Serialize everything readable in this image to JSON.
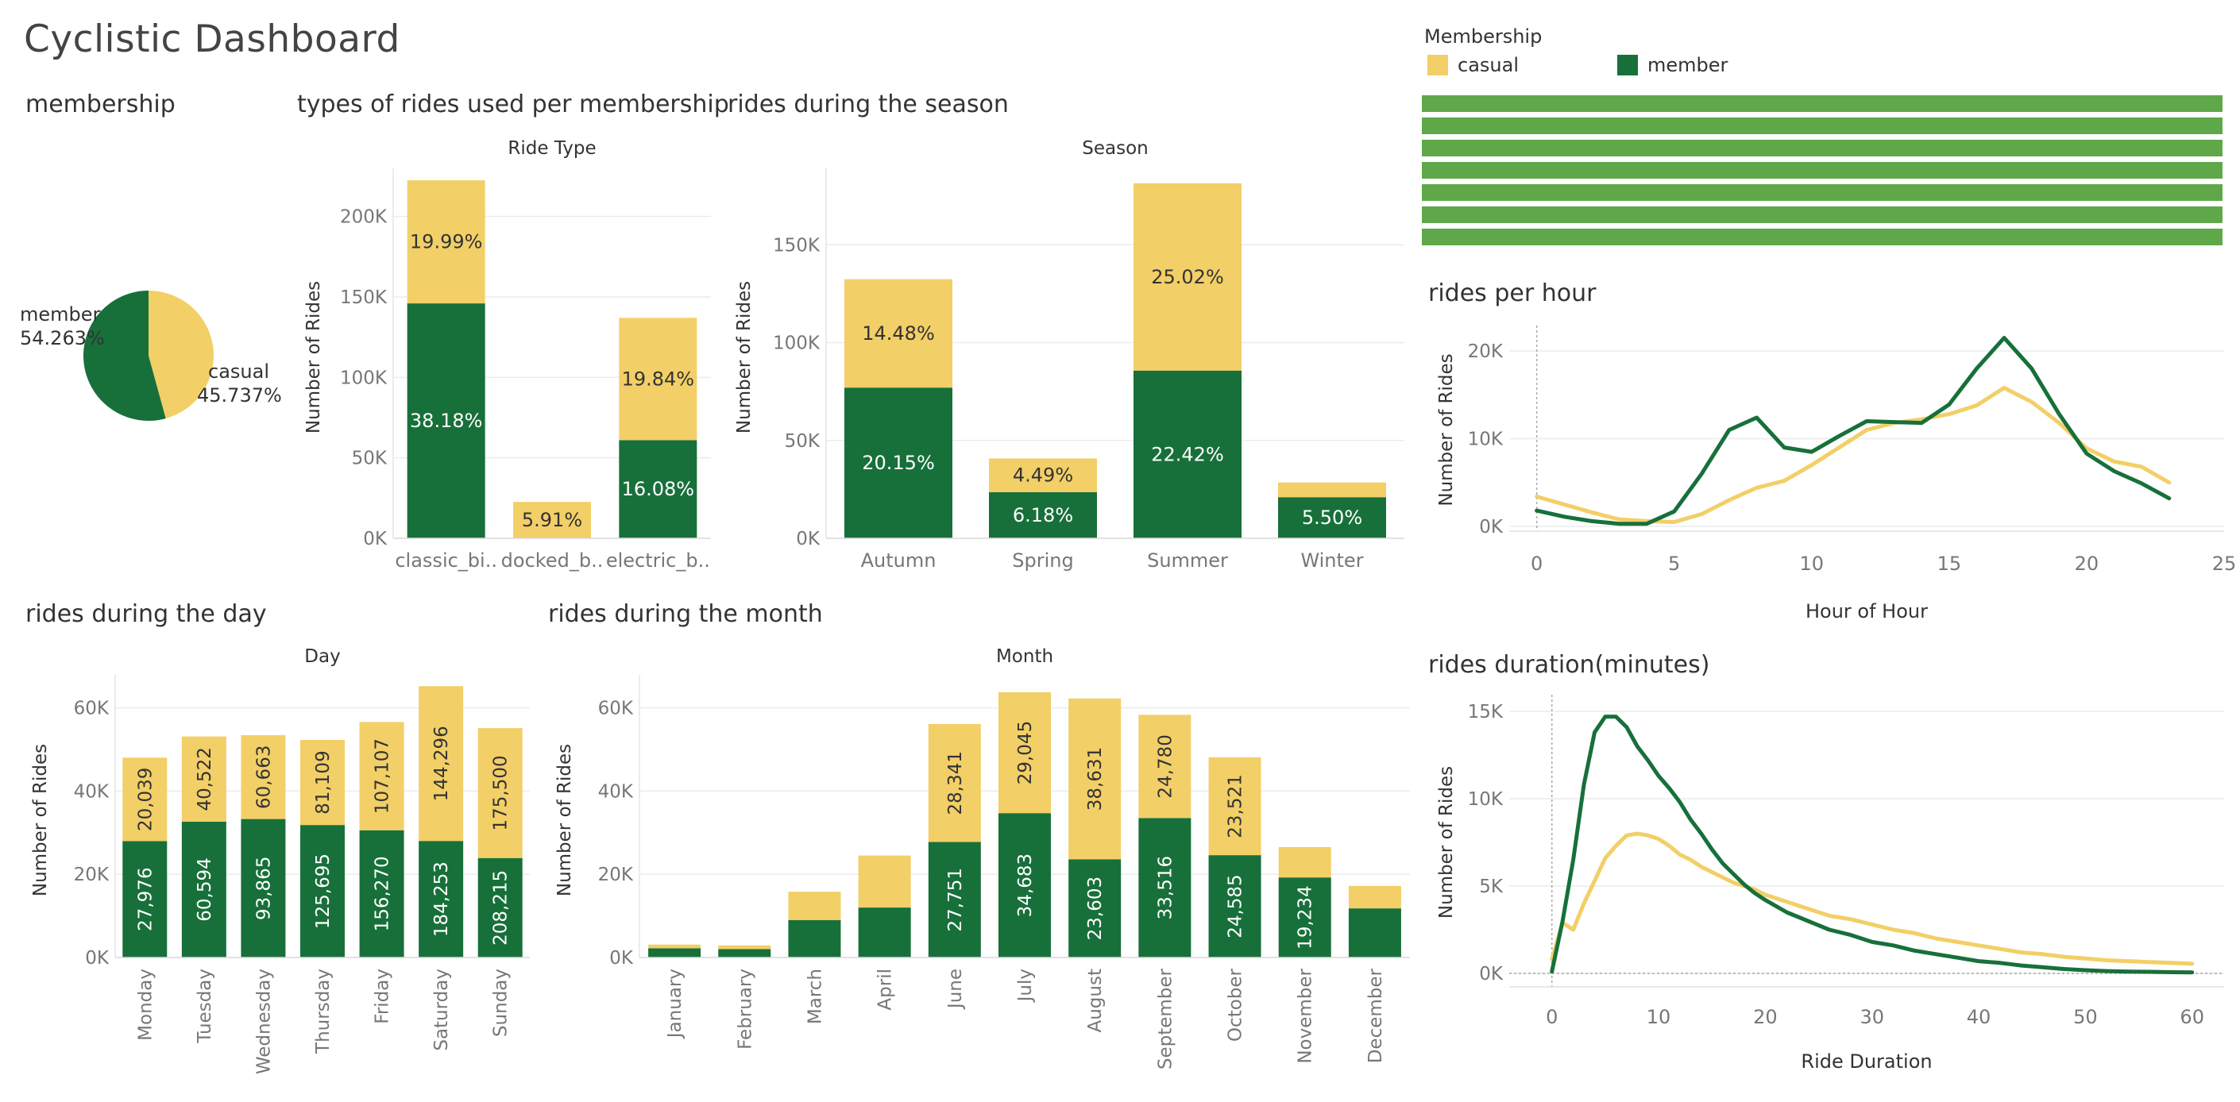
{
  "dashboard": {
    "title": "Cyclistic Dashboard",
    "colors": {
      "member": "#17703a",
      "casual": "#f2cf67",
      "filter_bar": "#5ea84a"
    },
    "legend": {
      "title": "Membership",
      "casual": "casual",
      "member": "member"
    }
  },
  "sections": {
    "membership": "membership",
    "ride_types": "types of rides used per membership",
    "season": "rides during the season",
    "hour": "rides per hour",
    "day": "rides during the day",
    "month": "rides during the month",
    "duration": "rides duration(minutes)"
  },
  "chart_data": [
    {
      "id": "membership",
      "type": "pie",
      "labels": [
        "member",
        "casual"
      ],
      "values": [
        54.263,
        45.737
      ],
      "value_labels": [
        "54.263%",
        "45.737%"
      ]
    },
    {
      "id": "ride_types",
      "type": "bar",
      "stacked": true,
      "title": "Ride Type",
      "ylabel": "Number of Rides",
      "categories": [
        "classic_bi..",
        "docked_b..",
        "electric_b.."
      ],
      "ylim": [
        0,
        225000
      ],
      "yticks": [
        0,
        50000,
        100000,
        150000,
        200000
      ],
      "ytick_labels": [
        "0K",
        "50K",
        "100K",
        "150K",
        "200K"
      ],
      "series": [
        {
          "name": "member",
          "values": [
            146000,
            0,
            61000
          ],
          "labels": [
            "38.18%",
            "",
            "16.08%"
          ]
        },
        {
          "name": "casual",
          "values": [
            76500,
            22600,
            76000
          ],
          "labels": [
            "19.99%",
            "5.91%",
            "19.84%"
          ]
        }
      ]
    },
    {
      "id": "season",
      "type": "bar",
      "stacked": true,
      "title": "Season",
      "ylabel": "Number of Rides",
      "categories": [
        "Autumn",
        "Spring",
        "Summer",
        "Winter"
      ],
      "ylim": [
        0,
        185000
      ],
      "yticks": [
        0,
        50000,
        100000,
        150000
      ],
      "ytick_labels": [
        "0K",
        "50K",
        "100K",
        "150K"
      ],
      "series": [
        {
          "name": "member",
          "values": [
            77000,
            23600,
            85700,
            21000
          ],
          "labels": [
            "20.15%",
            "6.18%",
            "22.42%",
            "5.50%"
          ]
        },
        {
          "name": "casual",
          "values": [
            55400,
            17200,
            95700,
            7500
          ],
          "labels": [
            "14.48%",
            "4.49%",
            "25.02%",
            ""
          ]
        }
      ]
    },
    {
      "id": "hour",
      "type": "line",
      "title": "rides per hour",
      "xlabel": "Hour of Hour",
      "ylabel": "Number of Rides",
      "xlim": [
        -1,
        25
      ],
      "ylim": [
        0,
        22000
      ],
      "xticks": [
        0,
        5,
        10,
        15,
        20,
        25
      ],
      "yticks": [
        0,
        10000,
        20000
      ],
      "ytick_labels": [
        "0K",
        "10K",
        "20K"
      ],
      "series": [
        {
          "name": "member",
          "x": [
            0,
            1,
            2,
            3,
            4,
            5,
            6,
            7,
            8,
            9,
            10,
            11,
            12,
            13,
            14,
            15,
            16,
            17,
            18,
            19,
            20,
            21,
            22,
            23
          ],
          "y": [
            1800,
            1100,
            600,
            300,
            300,
            1700,
            6000,
            11000,
            12400,
            9000,
            8500,
            10300,
            12000,
            11900,
            11800,
            13900,
            18000,
            21500,
            18000,
            12800,
            8300,
            6300,
            4900,
            3200
          ]
        },
        {
          "name": "casual",
          "x": [
            0,
            1,
            2,
            3,
            4,
            5,
            6,
            7,
            8,
            9,
            10,
            11,
            12,
            13,
            14,
            15,
            16,
            17,
            18,
            19,
            20,
            21,
            22,
            23
          ],
          "y": [
            3400,
            2500,
            1600,
            800,
            600,
            500,
            1400,
            3000,
            4400,
            5200,
            7000,
            9000,
            11000,
            11800,
            12200,
            12800,
            13800,
            15800,
            14200,
            11800,
            8900,
            7400,
            6800,
            5000
          ]
        }
      ]
    },
    {
      "id": "day",
      "type": "bar",
      "stacked": true,
      "title": "Day",
      "ylabel": "Number of Rides",
      "categories": [
        "Monday",
        "Tuesday",
        "Wednesday",
        "Thursday",
        "Friday",
        "Saturday",
        "Sunday"
      ],
      "ylim": [
        0,
        66000
      ],
      "yticks": [
        0,
        20000,
        40000,
        60000
      ],
      "ytick_labels": [
        "0K",
        "20K",
        "40K",
        "60K"
      ],
      "series": [
        {
          "name": "member",
          "values": [
            27976,
            32618,
            33271,
            31830,
            30575,
            28000,
            23900
          ],
          "labels": [
            "27,976",
            "60,594",
            "93,865",
            "125,695",
            "156,270",
            "184,253",
            "208,215"
          ]
        },
        {
          "name": "casual",
          "values": [
            20039,
            20483,
            20141,
            20446,
            25998,
            37187,
            31204
          ],
          "labels": [
            "20,039",
            "40,522",
            "60,663",
            "81,109",
            "107,107",
            "144,296",
            "175,500"
          ]
        }
      ]
    },
    {
      "id": "month",
      "type": "bar",
      "stacked": true,
      "title": "Month",
      "ylabel": "Number of Rides",
      "categories": [
        "January",
        "February",
        "March",
        "April",
        "June",
        "July",
        "August",
        "September",
        "October",
        "November",
        "December"
      ],
      "ylim": [
        0,
        66000
      ],
      "yticks": [
        0,
        20000,
        40000,
        60000
      ],
      "ytick_labels": [
        "0K",
        "20K",
        "40K",
        "60K"
      ],
      "series": [
        {
          "name": "member",
          "values": [
            2200,
            2000,
            9000,
            12000,
            27751,
            34683,
            23603,
            33516,
            24585,
            19234,
            11800
          ],
          "labels": [
            "",
            "",
            "",
            "",
            "27,751",
            "34,683",
            "23,603",
            "33,516",
            "24,585",
            "19,234",
            ""
          ]
        },
        {
          "name": "casual",
          "values": [
            900,
            900,
            6800,
            12500,
            28341,
            29045,
            38631,
            24780,
            23521,
            7300,
            5400
          ],
          "labels": [
            "",
            "",
            "",
            "",
            "28,341",
            "29,045",
            "38,631",
            "24,780",
            "23,521",
            "",
            ""
          ]
        }
      ]
    },
    {
      "id": "duration",
      "type": "line",
      "title": "rides duration(minutes)",
      "xlabel": "Ride Duration",
      "ylabel": "Number of Rides",
      "xlim": [
        -4,
        63
      ],
      "ylim": [
        -500,
        15500
      ],
      "xticks": [
        0,
        10,
        20,
        30,
        40,
        50,
        60
      ],
      "yticks": [
        0,
        5000,
        10000,
        15000
      ],
      "ytick_labels": [
        "0K",
        "5K",
        "10K",
        "15K"
      ],
      "series": [
        {
          "name": "member",
          "x": [
            0,
            1,
            2,
            3,
            4,
            5,
            6,
            7,
            8,
            9,
            10,
            11,
            12,
            13,
            14,
            15,
            16,
            17,
            18,
            19,
            20,
            22,
            24,
            26,
            28,
            30,
            32,
            34,
            36,
            38,
            40,
            42,
            44,
            46,
            48,
            50,
            52,
            54,
            56,
            58,
            60
          ],
          "y": [
            100,
            3000,
            6500,
            10800,
            13800,
            14700,
            14700,
            14100,
            13000,
            12200,
            11300,
            10600,
            9800,
            8800,
            8000,
            7100,
            6300,
            5700,
            5100,
            4600,
            4200,
            3500,
            3000,
            2500,
            2200,
            1800,
            1600,
            1300,
            1100,
            900,
            700,
            600,
            450,
            350,
            250,
            180,
            130,
            100,
            90,
            70,
            60
          ]
        },
        {
          "name": "casual",
          "x": [
            0,
            1,
            2,
            3,
            4,
            5,
            6,
            7,
            8,
            9,
            10,
            11,
            12,
            13,
            14,
            15,
            16,
            17,
            18,
            19,
            20,
            22,
            24,
            26,
            28,
            30,
            32,
            34,
            36,
            38,
            40,
            42,
            44,
            46,
            48,
            50,
            52,
            54,
            56,
            58,
            60
          ],
          "y": [
            800,
            2900,
            2500,
            4000,
            5300,
            6600,
            7300,
            7900,
            8000,
            7900,
            7700,
            7300,
            6800,
            6500,
            6100,
            5800,
            5500,
            5200,
            5000,
            4800,
            4500,
            4100,
            3700,
            3300,
            3100,
            2800,
            2500,
            2300,
            2000,
            1800,
            1600,
            1400,
            1200,
            1100,
            950,
            850,
            750,
            700,
            650,
            600,
            550
          ]
        }
      ]
    }
  ]
}
